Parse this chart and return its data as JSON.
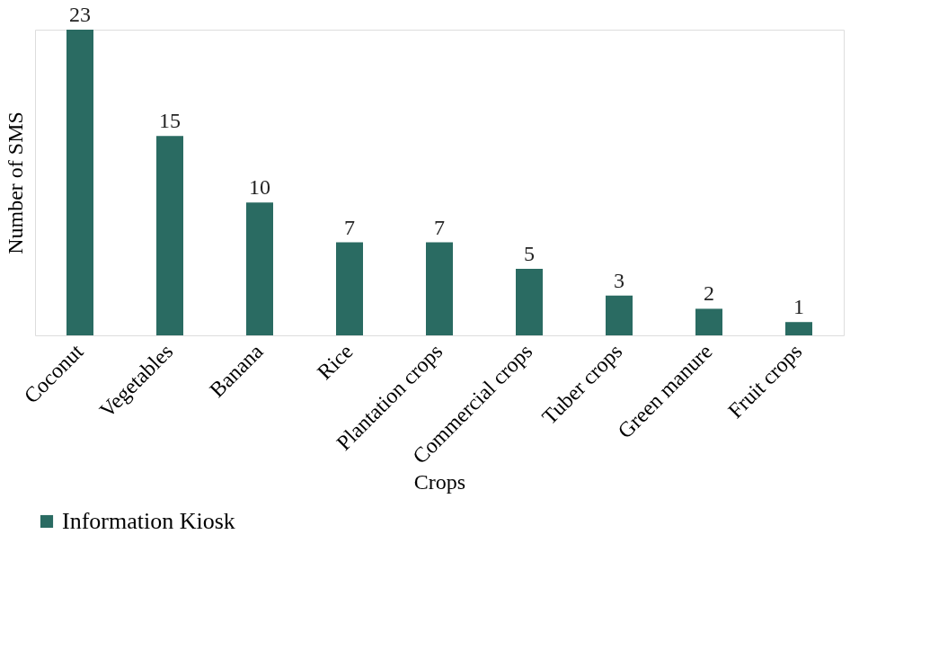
{
  "chart_data": {
    "type": "bar",
    "xlabel": "Crops",
    "ylabel": "Number of SMS",
    "categories": [
      "Coconut",
      "Vegetables",
      "Banana",
      "Rice",
      "Plantation crops",
      "Commercial crops",
      "Tuber crops",
      "Green manure",
      "Fruit crops"
    ],
    "series": [
      {
        "name": "Information Kiosk",
        "color": "#2a6b62",
        "values": [
          23,
          15,
          10,
          7,
          7,
          5,
          3,
          2,
          1
        ]
      }
    ],
    "data_labels": true,
    "legend": "bottom",
    "grid": false
  }
}
